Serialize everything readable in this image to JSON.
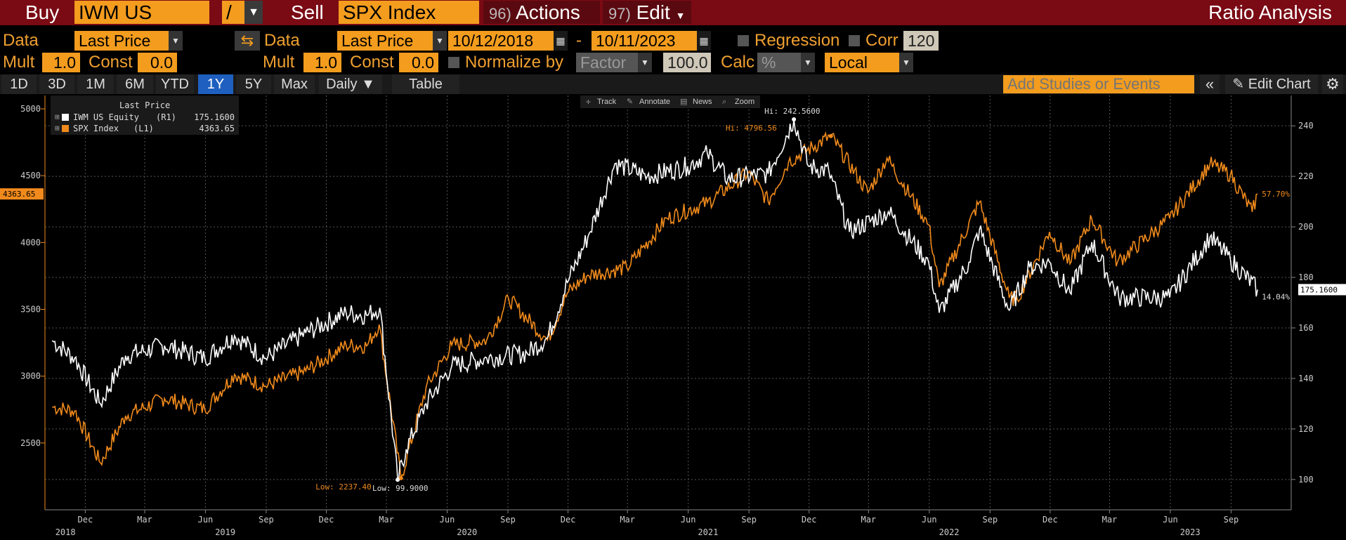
{
  "topbar": {
    "buy_label": "Buy",
    "buy_security": "IWM US Equity",
    "operator": "/",
    "sell_label": "Sell",
    "sell_security": "SPX Index",
    "actions_num": "96)",
    "actions_label": "Actions",
    "edit_num": "97)",
    "edit_label": "Edit",
    "title": "Ratio Analysis"
  },
  "controls": {
    "data_label": "Data",
    "data1_value": "Last Price",
    "data2_value": "Last Price",
    "start_date": "10/12/2018",
    "dash": "-",
    "end_date": "10/11/2023",
    "regression_label": "Regression",
    "corr_label": "Corr",
    "corr_value": "120",
    "mult_label": "Mult",
    "mult1_value": "1.0",
    "const_label": "Const",
    "const1_value": "0.0",
    "mult2_value": "1.0",
    "const2_value": "0.0",
    "normalize_label": "Normalize by",
    "normalize_value": "Factor",
    "normalize_amount": "100.0",
    "calc_label": "Calc",
    "calc_value": "%",
    "local_value": "Local"
  },
  "tabs": [
    "1D",
    "3D",
    "1M",
    "6M",
    "YTD",
    "1Y",
    "5Y",
    "Max"
  ],
  "active_tab": "1Y",
  "frequency": "Daily",
  "table_label": "Table",
  "studies_placeholder": "Add Studies or Events",
  "edit_chart_label": "Edit Chart",
  "chart_toolbar": [
    "Track",
    "Annotate",
    "News",
    "Zoom"
  ],
  "colors": {
    "iwm": "#ffffff",
    "spx": "#f08a1c",
    "accent": "#f39c1e",
    "topbar": "#7a0a14"
  },
  "chart_data": {
    "type": "line",
    "legend_title": "Last Price",
    "legend_placement": "top-left",
    "grid": true,
    "series": [
      {
        "name": "IWM US Equity",
        "axis_tag": "(R1)",
        "last": "175.1600",
        "axis": "right",
        "points": [
          [
            "2018-10-12",
            155
          ],
          [
            "2018-11-15",
            148
          ],
          [
            "2018-12-24",
            130
          ],
          [
            "2019-01-31",
            149
          ],
          [
            "2019-03-31",
            153
          ],
          [
            "2019-05-31",
            148
          ],
          [
            "2019-07-15",
            157
          ],
          [
            "2019-08-31",
            148
          ],
          [
            "2019-10-31",
            158
          ],
          [
            "2019-12-31",
            166
          ],
          [
            "2020-01-31",
            165
          ],
          [
            "2020-02-20",
            168
          ],
          [
            "2020-03-18",
            100
          ],
          [
            "2020-03-31",
            112
          ],
          [
            "2020-04-30",
            130
          ],
          [
            "2020-06-08",
            145
          ],
          [
            "2020-07-31",
            148
          ],
          [
            "2020-09-30",
            150
          ],
          [
            "2020-10-31",
            156
          ],
          [
            "2020-11-30",
            178
          ],
          [
            "2020-12-31",
            196
          ],
          [
            "2021-02-10",
            225
          ],
          [
            "2021-03-31",
            220
          ],
          [
            "2021-05-31",
            224
          ],
          [
            "2021-06-30",
            229
          ],
          [
            "2021-07-31",
            219
          ],
          [
            "2021-09-30",
            221
          ],
          [
            "2021-11-08",
            242.56
          ],
          [
            "2021-11-30",
            224
          ],
          [
            "2021-12-31",
            222
          ],
          [
            "2022-01-31",
            198
          ],
          [
            "2022-03-31",
            206
          ],
          [
            "2022-05-31",
            186
          ],
          [
            "2022-06-16",
            166
          ],
          [
            "2022-07-31",
            186
          ],
          [
            "2022-08-16",
            199
          ],
          [
            "2022-09-30",
            167
          ],
          [
            "2022-10-31",
            184
          ],
          [
            "2022-11-30",
            186
          ],
          [
            "2022-12-31",
            174
          ],
          [
            "2023-02-02",
            194
          ],
          [
            "2023-03-15",
            172
          ],
          [
            "2023-05-31",
            172
          ],
          [
            "2023-07-31",
            196
          ],
          [
            "2023-08-31",
            187
          ],
          [
            "2023-10-11",
            175.16
          ]
        ]
      },
      {
        "name": "SPX Index",
        "axis_tag": "(L1)",
        "last": "4363.65",
        "axis": "left",
        "points": [
          [
            "2018-10-12",
            2770
          ],
          [
            "2018-11-15",
            2740
          ],
          [
            "2018-12-24",
            2351
          ],
          [
            "2019-01-31",
            2704
          ],
          [
            "2019-03-31",
            2834
          ],
          [
            "2019-05-31",
            2752
          ],
          [
            "2019-07-15",
            3013
          ],
          [
            "2019-08-31",
            2926
          ],
          [
            "2019-10-31",
            3038
          ],
          [
            "2019-12-31",
            3231
          ],
          [
            "2020-01-31",
            3226
          ],
          [
            "2020-02-19",
            3386
          ],
          [
            "2020-03-23",
            2237.4
          ],
          [
            "2020-04-30",
            2912
          ],
          [
            "2020-06-08",
            3232
          ],
          [
            "2020-07-31",
            3271
          ],
          [
            "2020-09-02",
            3580
          ],
          [
            "2020-10-31",
            3270
          ],
          [
            "2020-11-30",
            3622
          ],
          [
            "2020-12-31",
            3756
          ],
          [
            "2021-02-28",
            3811
          ],
          [
            "2021-04-30",
            4181
          ],
          [
            "2021-06-30",
            4298
          ],
          [
            "2021-08-31",
            4523
          ],
          [
            "2021-09-30",
            4308
          ],
          [
            "2021-10-31",
            4605
          ],
          [
            "2022-01-03",
            4796.56
          ],
          [
            "2022-02-28",
            4374
          ],
          [
            "2022-03-29",
            4632
          ],
          [
            "2022-05-31",
            4132
          ],
          [
            "2022-06-16",
            3666
          ],
          [
            "2022-08-16",
            4305
          ],
          [
            "2022-09-30",
            3586
          ],
          [
            "2022-10-12",
            3577
          ],
          [
            "2022-11-30",
            4080
          ],
          [
            "2022-12-31",
            3840
          ],
          [
            "2023-02-02",
            4179
          ],
          [
            "2023-03-13",
            3855
          ],
          [
            "2023-05-31",
            4180
          ],
          [
            "2023-07-31",
            4589
          ],
          [
            "2023-08-31",
            4508
          ],
          [
            "2023-10-03",
            4229
          ],
          [
            "2023-10-11",
            4363.65
          ]
        ]
      }
    ],
    "left_axis": {
      "ticks": [
        5000,
        4500,
        4000,
        3500,
        3000,
        2500
      ],
      "range": [
        2000,
        5100
      ]
    },
    "right_axis": {
      "ticks": [
        240,
        220,
        200,
        180,
        160,
        140,
        120,
        100
      ],
      "range": [
        88,
        252
      ]
    },
    "x_range": [
      "2018-10-01",
      "2023-12-01"
    ],
    "month_ticks": [
      {
        "date": "2018-12-01",
        "label": "Dec"
      },
      {
        "date": "2019-03-01",
        "label": "Mar"
      },
      {
        "date": "2019-06-01",
        "label": "Jun"
      },
      {
        "date": "2019-09-01",
        "label": "Sep"
      },
      {
        "date": "2019-12-01",
        "label": "Dec"
      },
      {
        "date": "2020-03-01",
        "label": "Mar"
      },
      {
        "date": "2020-06-01",
        "label": "Jun"
      },
      {
        "date": "2020-09-01",
        "label": "Sep"
      },
      {
        "date": "2020-12-01",
        "label": "Dec"
      },
      {
        "date": "2021-03-01",
        "label": "Mar"
      },
      {
        "date": "2021-06-01",
        "label": "Jun"
      },
      {
        "date": "2021-09-01",
        "label": "Sep"
      },
      {
        "date": "2021-12-01",
        "label": "Dec"
      },
      {
        "date": "2022-03-01",
        "label": "Mar"
      },
      {
        "date": "2022-06-01",
        "label": "Jun"
      },
      {
        "date": "2022-09-01",
        "label": "Sep"
      },
      {
        "date": "2022-12-01",
        "label": "Dec"
      },
      {
        "date": "2023-03-01",
        "label": "Mar"
      },
      {
        "date": "2023-06-01",
        "label": "Jun"
      },
      {
        "date": "2023-09-01",
        "label": "Sep"
      }
    ],
    "year_ticks": [
      {
        "date": "2018-11-01",
        "label": "2018"
      },
      {
        "date": "2019-07-01",
        "label": "2019"
      },
      {
        "date": "2020-07-01",
        "label": "2020"
      },
      {
        "date": "2021-07-01",
        "label": "2021"
      },
      {
        "date": "2022-07-01",
        "label": "2022"
      },
      {
        "date": "2023-07-01",
        "label": "2023"
      }
    ],
    "annotations": {
      "spx_hi": {
        "text": "Hi: 4796.56",
        "date": "2022-01-03",
        "value": 4796.56
      },
      "iwm_hi": {
        "text": "Hi: 242.5600",
        "date": "2021-11-08",
        "value": 242.56
      },
      "spx_low": {
        "text": "Low: 2237.40",
        "date": "2020-03-23",
        "value": 2237.4
      },
      "iwm_low": {
        "text": "Low: 99.9000",
        "date": "2020-03-18",
        "value": 99.9
      },
      "spx_pct": "57.70%",
      "iwm_pct": "14.04%"
    }
  }
}
